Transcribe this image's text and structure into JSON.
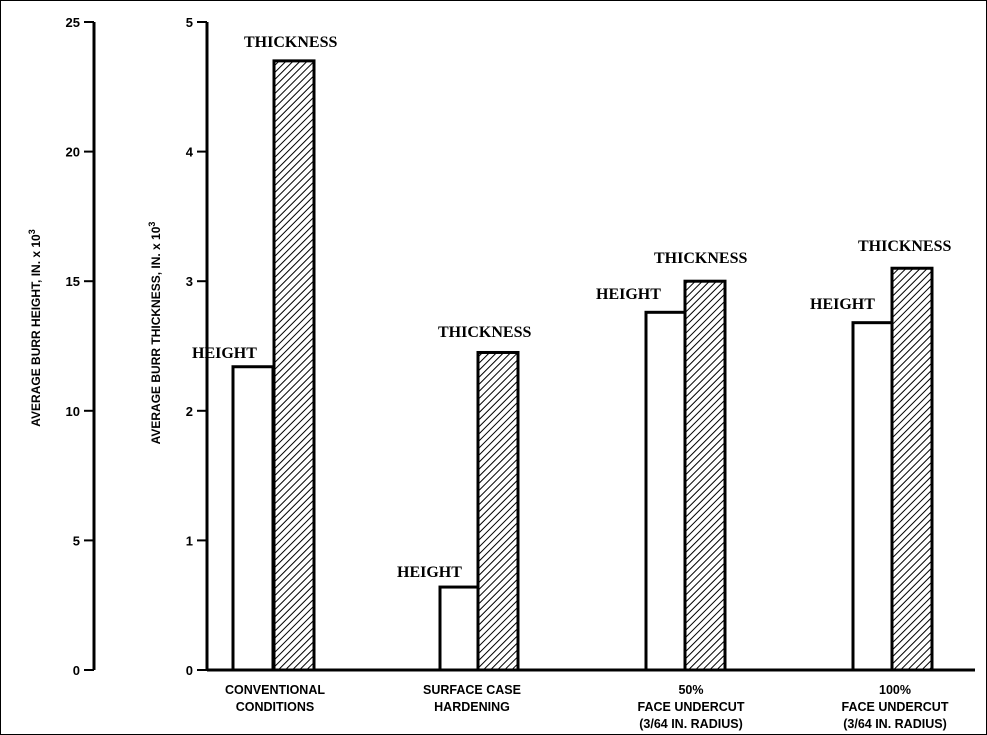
{
  "chart_data": {
    "type": "bar",
    "axes": {
      "left": {
        "label": "AVERAGE BURR HEIGHT, IN. x 10",
        "label_sup": "3",
        "ylim": [
          0,
          25
        ],
        "ticks": [
          "0",
          "5",
          "10",
          "15",
          "20",
          "25"
        ]
      },
      "right": {
        "label": "AVERAGE BURR THICKNESS, IN. x 10",
        "label_sup": "3",
        "ylim": [
          0,
          5
        ],
        "ticks": [
          "0",
          "1",
          "2",
          "3",
          "4",
          "5"
        ]
      }
    },
    "categories": [
      {
        "lines": [
          "CONVENTIONAL",
          "CONDITIONS"
        ]
      },
      {
        "lines": [
          "SURFACE CASE",
          "HARDENING"
        ]
      },
      {
        "lines": [
          "50%",
          "FACE UNDERCUT",
          "(3/64 IN. RADIUS)"
        ]
      },
      {
        "lines": [
          "100%",
          "FACE UNDERCUT",
          "(3/64 IN. RADIUS)"
        ]
      }
    ],
    "series": [
      {
        "name": "HEIGHT",
        "axis": "left",
        "fill": "#ffffff",
        "values": [
          11.7,
          3.2,
          13.8,
          13.4
        ]
      },
      {
        "name": "THICKNESS",
        "axis": "right",
        "fill": "hatched",
        "values": [
          4.7,
          2.45,
          3.0,
          3.1
        ]
      }
    ],
    "grid": false,
    "legend": "none"
  }
}
